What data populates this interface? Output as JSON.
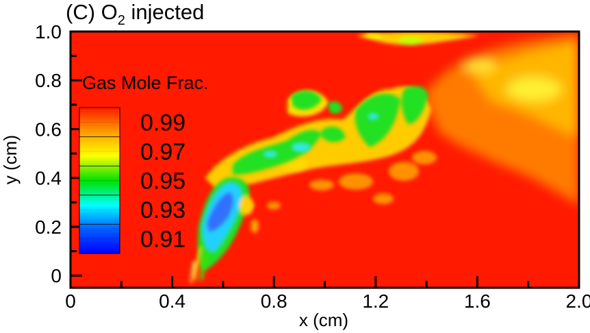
{
  "chart_data": {
    "type": "heatmap",
    "title_prefix": "(C) O",
    "title_subscript": "2",
    "title_suffix": " injected",
    "xlabel": "x (cm)",
    "ylabel": "y (cm)",
    "xlim": [
      0,
      2.0
    ],
    "ylim": [
      -0.05,
      1.0
    ],
    "x_ticks": [
      "0",
      "0.4",
      "0.8",
      "1.2",
      "1.6",
      "2.0"
    ],
    "x_tick_values": [
      0,
      0.4,
      0.8,
      1.2,
      1.6,
      2.0
    ],
    "y_ticks": [
      "0",
      "0.2",
      "0.4",
      "0.6",
      "0.8",
      "1.0"
    ],
    "y_tick_values": [
      0,
      0.2,
      0.4,
      0.6,
      0.8,
      1.0
    ],
    "colorbar": {
      "title": "Gas Mole Frac.",
      "range": [
        0.9,
        1.0
      ],
      "levels": [
        "0.99",
        "0.97",
        "0.95",
        "0.93",
        "0.91"
      ],
      "level_values": [
        0.99,
        0.97,
        0.95,
        0.93,
        0.91
      ],
      "colors": [
        "#ff1a00",
        "#ffa000",
        "#ffff00",
        "#00e000",
        "#00ffff",
        "#0050ff",
        "#0000ff"
      ]
    },
    "background_value": 1.0,
    "features": [
      {
        "name": "upper-right-plume",
        "x": 1.7,
        "y": 0.75,
        "value": 0.985
      },
      {
        "name": "upper-streak",
        "x": 1.3,
        "y": 0.97,
        "value": 0.98
      },
      {
        "name": "mid-plume-1",
        "x": 1.28,
        "y": 0.58,
        "value": 0.955
      },
      {
        "name": "mid-plume-2",
        "x": 1.0,
        "y": 0.6,
        "value": 0.955
      },
      {
        "name": "mid-plume-3",
        "x": 0.78,
        "y": 0.47,
        "value": 0.95
      },
      {
        "name": "lower-plume",
        "x": 0.6,
        "y": 0.27,
        "value": 0.93
      },
      {
        "name": "injection-point",
        "x": 0.5,
        "y": 0.0,
        "value": 0.95
      }
    ]
  }
}
